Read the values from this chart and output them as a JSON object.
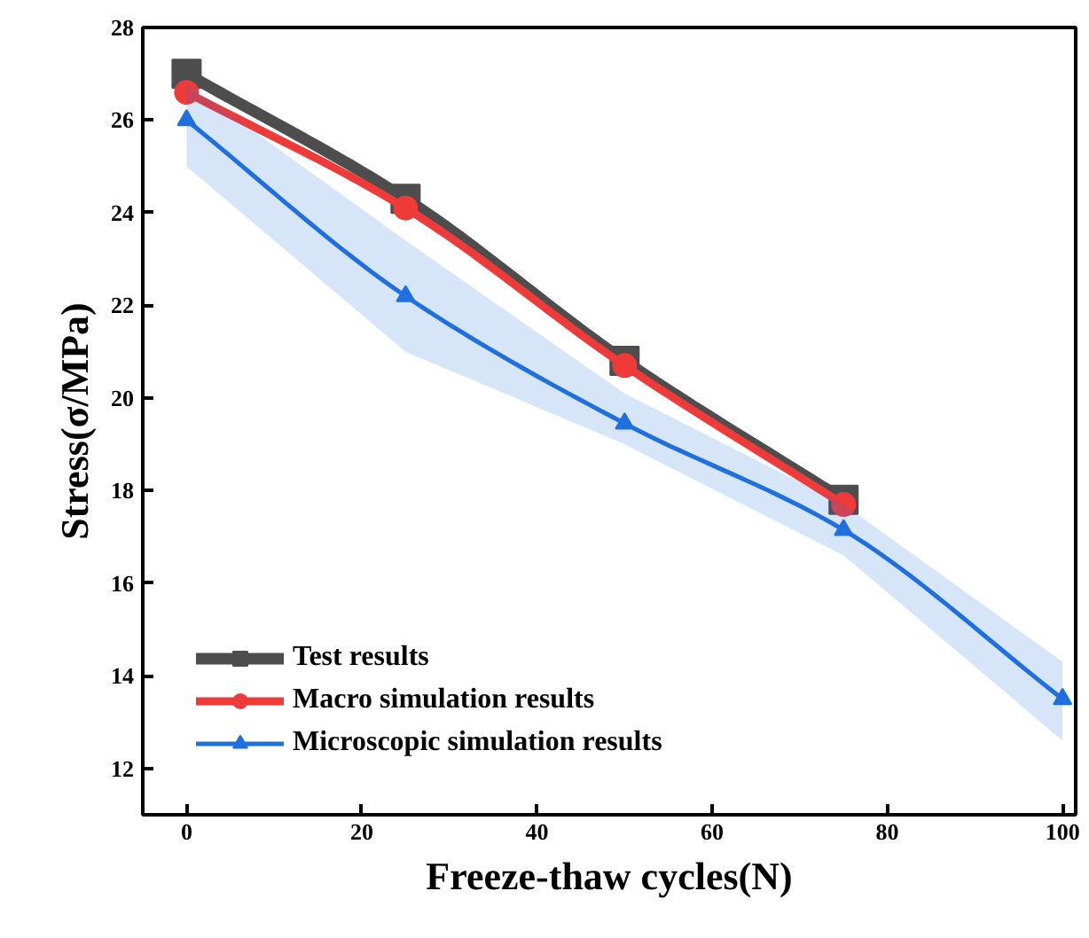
{
  "chart_data": {
    "type": "line",
    "xlabel": "Freeze-thaw cycles(N)",
    "ylabel": "Stress(σ/MPa)",
    "xlim": [
      -5,
      101.5
    ],
    "ylim": [
      11,
      28
    ],
    "xticks": [
      0,
      20,
      40,
      60,
      80,
      100
    ],
    "yticks": [
      12,
      14,
      16,
      18,
      20,
      22,
      24,
      26,
      28
    ],
    "grid": false,
    "legend": "bottom left",
    "line_style": "solid",
    "series": [
      {
        "name": "Test results",
        "color": "#4d4d4d",
        "marker": "square",
        "x": [
          0,
          25,
          50,
          75
        ],
        "values": [
          27.0,
          24.3,
          20.8,
          17.8
        ]
      },
      {
        "name": "Macro simulation results",
        "color": "#ef3a3a",
        "marker": "circle",
        "x": [
          0,
          25,
          50,
          75
        ],
        "values": [
          26.6,
          24.1,
          20.7,
          17.7
        ]
      },
      {
        "name": "Microscopic simulation results",
        "color": "#1f6fe0",
        "marker": "triangle",
        "x": [
          0,
          25,
          50,
          75,
          100
        ],
        "values": [
          26.0,
          22.2,
          19.45,
          17.15,
          13.5
        ],
        "lower": [
          25.0,
          21.0,
          19.0,
          16.6,
          12.6
        ],
        "upper": [
          26.8,
          23.4,
          20.1,
          17.7,
          14.3
        ]
      }
    ]
  }
}
